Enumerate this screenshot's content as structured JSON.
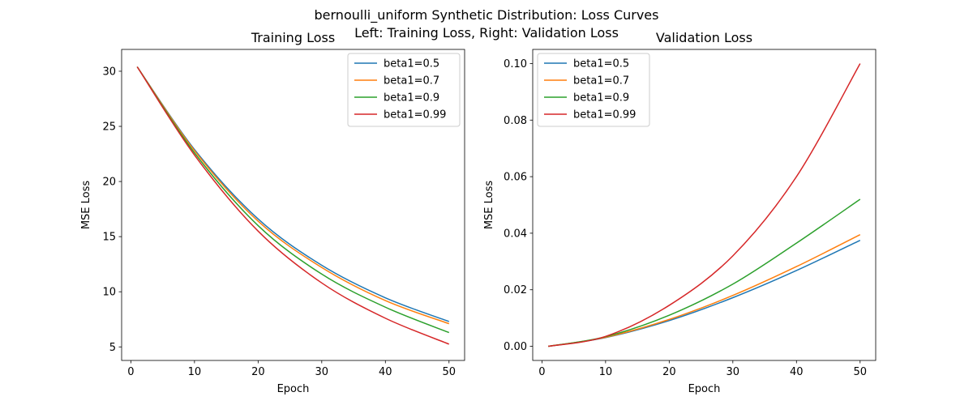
{
  "figure": {
    "title_line1": "bernoulli_uniform Synthetic Distribution: Loss Curves",
    "title_line2": "Left: Training Loss, Right: Validation Loss"
  },
  "colors": {
    "beta1=0.5": "#1f77b4",
    "beta1=0.7": "#ff7f0e",
    "beta1=0.9": "#2ca02c",
    "beta1=0.99": "#d62728"
  },
  "chart_data": [
    {
      "type": "line",
      "title": "Training Loss",
      "xlabel": "Epoch",
      "ylabel": "MSE Loss",
      "xlim": [
        -1.45,
        52.45
      ],
      "ylim": [
        3.77,
        31.98
      ],
      "xticks": [
        0,
        10,
        20,
        30,
        40,
        50
      ],
      "yticks": [
        5,
        10,
        15,
        20,
        25,
        30
      ],
      "legend_position": "upper right",
      "grid": false,
      "series": [
        {
          "name": "beta1=0.5",
          "x": [
            1,
            10,
            20,
            30,
            40,
            50
          ],
          "y": [
            30.4,
            22.9,
            16.6,
            12.4,
            9.45,
            7.3
          ]
        },
        {
          "name": "beta1=0.7",
          "x": [
            1,
            10,
            20,
            30,
            40,
            50
          ],
          "y": [
            30.4,
            22.8,
            16.4,
            12.2,
            9.2,
            7.1
          ]
        },
        {
          "name": "beta1=0.9",
          "x": [
            1,
            10,
            20,
            30,
            40,
            50
          ],
          "y": [
            30.4,
            22.6,
            16.0,
            11.6,
            8.6,
            6.3
          ]
        },
        {
          "name": "beta1=0.99",
          "x": [
            1,
            10,
            20,
            30,
            40,
            50
          ],
          "y": [
            30.4,
            22.4,
            15.5,
            10.8,
            7.6,
            5.25
          ]
        }
      ]
    },
    {
      "type": "line",
      "title": "Validation Loss",
      "xlabel": "Epoch",
      "ylabel": "MSE Loss",
      "xlim": [
        -1.45,
        52.45
      ],
      "ylim": [
        -0.005,
        0.105
      ],
      "xticks": [
        0,
        10,
        20,
        30,
        40,
        50
      ],
      "yticks": [
        0.0,
        0.02,
        0.04,
        0.06,
        0.08,
        0.1
      ],
      "ytick_labels": [
        "0.00",
        "0.02",
        "0.04",
        "0.06",
        "0.08",
        "0.10"
      ],
      "legend_position": "upper left",
      "grid": false,
      "series": [
        {
          "name": "beta1=0.5",
          "x": [
            1,
            10,
            20,
            30,
            40,
            50
          ],
          "y": [
            0.0,
            0.0031,
            0.0091,
            0.0172,
            0.0268,
            0.0375
          ]
        },
        {
          "name": "beta1=0.7",
          "x": [
            1,
            10,
            20,
            30,
            40,
            50
          ],
          "y": [
            0.0,
            0.0032,
            0.0095,
            0.018,
            0.0282,
            0.0395
          ]
        },
        {
          "name": "beta1=0.9",
          "x": [
            1,
            10,
            20,
            30,
            40,
            50
          ],
          "y": [
            0.0,
            0.0034,
            0.011,
            0.022,
            0.0365,
            0.052
          ]
        },
        {
          "name": "beta1=0.99",
          "x": [
            1,
            10,
            20,
            30,
            40,
            50
          ],
          "y": [
            0.0,
            0.0035,
            0.0145,
            0.032,
            0.06,
            0.1
          ]
        }
      ]
    }
  ]
}
